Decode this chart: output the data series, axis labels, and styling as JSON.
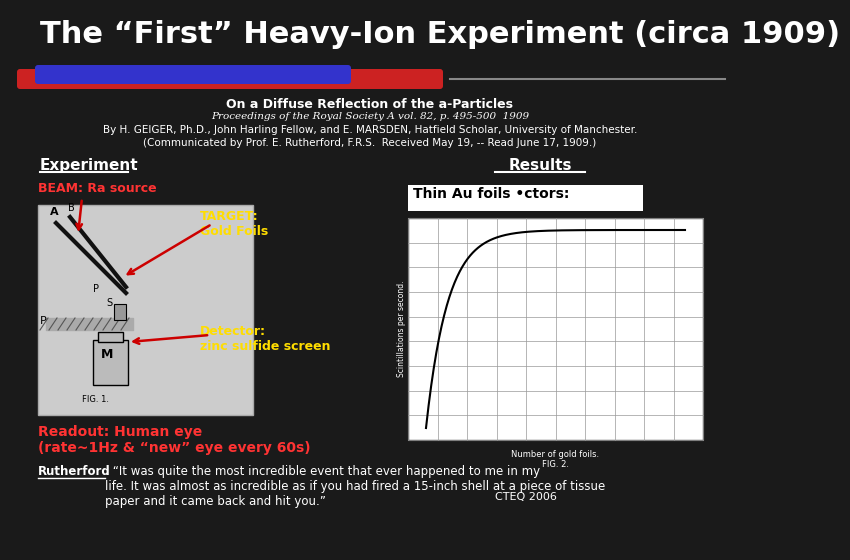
{
  "bg_color": "#1a1a1a",
  "title_text": "The “First” Heavy-Ion Experiment (circa 1909)",
  "title_color": "#ffffff",
  "title_fontsize": 22,
  "bar1_color": "#cc2222",
  "bar2_color": "#3333cc",
  "paper_title": "On a Diffuse Reflection of the a-Particles",
  "paper_proceedings": "Proceedings of the Royal Society A vol. 82, p. 495-500  1909",
  "paper_authors": "By H. GEIGER, Ph.D., John Harling Fellow, and E. MARSDEN, Hatfield Scholar, University of Manchester.",
  "paper_communicated": "(Communicated by Prof. E. Rutherford, F.R.S.  Received May 19, -- Read June 17, 1909.)",
  "experiment_label": "Experiment",
  "results_label": "Results",
  "beam_text": "BEAM: Ra source",
  "target_text": "TARGET:\nGold Foils",
  "detector_text": "Detector:\nzinc sulfide screen",
  "readout_text": "Readout: Human eye\n(rate~1Hz & “new” eye every 60s)",
  "thin_au_text": "Thin Au foils •ctors:",
  "rutherford_prefix": "Rutherford",
  "rutherford_quote": ": “It was quite the most incredible event that ever happened to me in my\nlife. It was almost as incredible as if you had fired a 15-inch shell at a piece of tissue\npaper and it came back and hit you.”",
  "cteq_text": "  CTEQ 2006"
}
